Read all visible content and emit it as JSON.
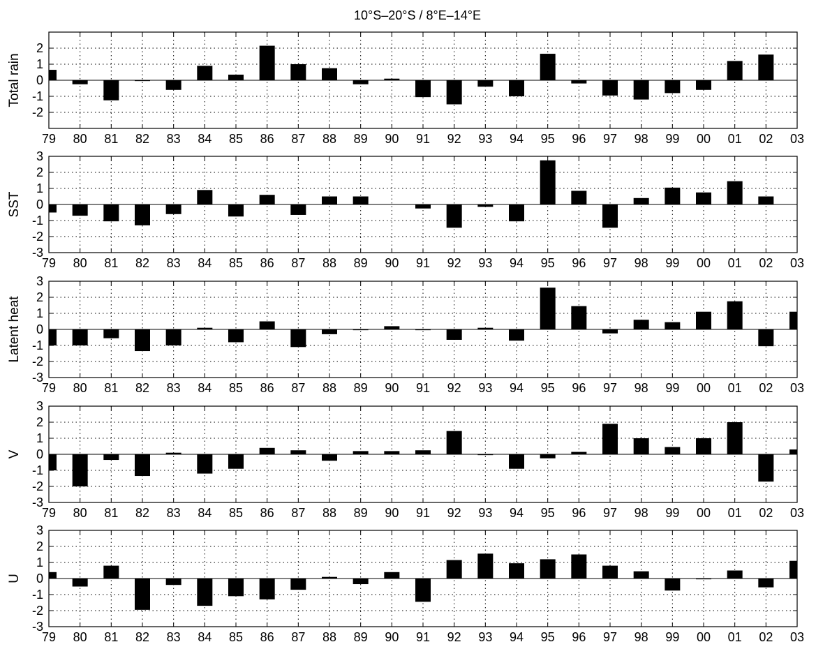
{
  "chart_data": {
    "title": "10°S–20°S / 8°E–14°E",
    "type": "bar",
    "years": [
      "79",
      "80",
      "81",
      "82",
      "83",
      "84",
      "85",
      "86",
      "87",
      "88",
      "89",
      "90",
      "91",
      "92",
      "93",
      "94",
      "95",
      "96",
      "97",
      "98",
      "99",
      "00",
      "01",
      "02",
      "03"
    ],
    "bar_color": "#000000",
    "grid": true,
    "panels": [
      {
        "ylabel": "Total rain",
        "ylim": [
          -3,
          3
        ],
        "yticks": [
          -2,
          -1,
          0,
          1,
          2
        ],
        "values": [
          0.65,
          -0.25,
          -1.25,
          -0.05,
          -0.6,
          0.9,
          0.35,
          2.15,
          1.0,
          0.75,
          -0.25,
          0.1,
          -1.05,
          -1.5,
          -0.4,
          -1.0,
          1.65,
          -0.2,
          -0.95,
          -1.2,
          -0.8,
          -0.6,
          1.2,
          1.6,
          0.0
        ]
      },
      {
        "ylabel": "SST",
        "ylim": [
          -3,
          3
        ],
        "yticks": [
          -3,
          -2,
          -1,
          0,
          1,
          2,
          3
        ],
        "values": [
          -0.5,
          -0.7,
          -1.05,
          -1.3,
          -0.6,
          0.9,
          -0.75,
          0.6,
          -0.65,
          0.5,
          0.5,
          0.0,
          -0.25,
          -1.45,
          -0.15,
          -1.05,
          2.75,
          0.85,
          -1.45,
          0.4,
          1.05,
          0.75,
          1.45,
          0.5,
          0.0
        ]
      },
      {
        "ylabel": "Latent heat",
        "ylim": [
          -3,
          3
        ],
        "yticks": [
          -3,
          -2,
          -1,
          0,
          1,
          2,
          3
        ],
        "values": [
          -1.0,
          -1.0,
          -0.55,
          -1.35,
          -1.0,
          0.1,
          -0.8,
          0.5,
          -1.1,
          -0.3,
          -0.05,
          0.2,
          -0.05,
          -0.65,
          0.1,
          -0.7,
          2.6,
          1.45,
          -0.25,
          0.6,
          0.45,
          1.1,
          1.75,
          -1.05,
          1.1
        ]
      },
      {
        "ylabel": "V",
        "ylim": [
          -3,
          3
        ],
        "yticks": [
          -3,
          -2,
          -1,
          0,
          1,
          2,
          3
        ],
        "values": [
          -1.0,
          -2.0,
          -0.35,
          -1.35,
          0.1,
          -1.2,
          -0.9,
          0.4,
          0.25,
          -0.4,
          0.2,
          0.2,
          0.25,
          1.45,
          -0.05,
          -0.9,
          -0.25,
          0.15,
          1.9,
          1.0,
          0.45,
          1.0,
          2.0,
          -1.7,
          0.3
        ]
      },
      {
        "ylabel": "U",
        "ylim": [
          -3,
          3
        ],
        "yticks": [
          -3,
          -2,
          -1,
          0,
          1,
          2,
          3
        ],
        "values": [
          0.4,
          -0.5,
          0.8,
          -1.95,
          -0.4,
          -1.7,
          -1.1,
          -1.3,
          -0.7,
          0.1,
          -0.35,
          0.4,
          -1.45,
          1.15,
          1.55,
          0.95,
          1.2,
          1.5,
          0.8,
          0.45,
          -0.75,
          -0.05,
          0.5,
          -0.55,
          1.1
        ]
      }
    ]
  }
}
